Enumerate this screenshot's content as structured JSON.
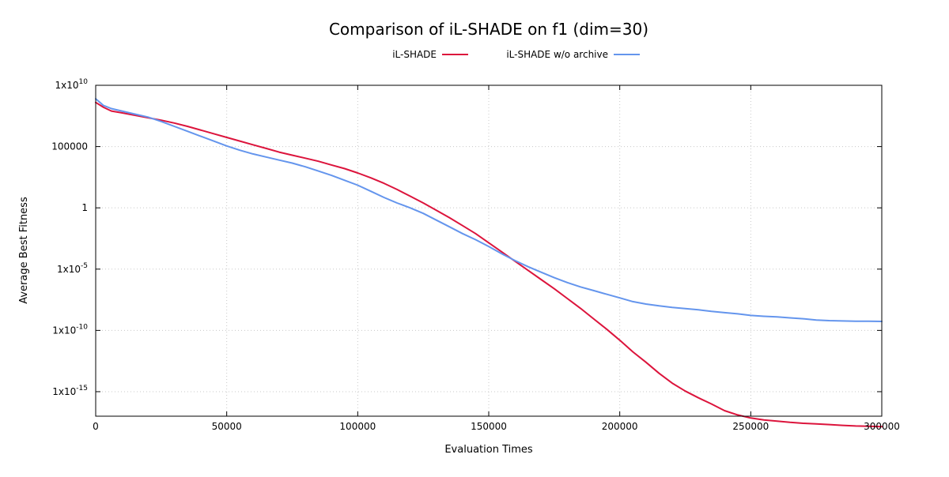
{
  "chart_data": {
    "type": "line",
    "title": "Comparison of iL-SHADE on f1 (dim=30)",
    "xlabel": "Evaluation Times",
    "ylabel": "Average Best Fitness",
    "y_scale": "log10",
    "grid": true,
    "legend_position": "top-center",
    "xlim": [
      0,
      300000
    ],
    "ylim_log10": [
      -17,
      10
    ],
    "x_ticks": [
      0,
      50000,
      100000,
      150000,
      200000,
      250000,
      300000
    ],
    "x_tick_labels": [
      "0",
      "50000",
      "100000",
      "150000",
      "200000",
      "250000",
      "300000"
    ],
    "y_ticks_log10": [
      10,
      5,
      0,
      -5,
      -10,
      -15
    ],
    "y_tick_labels": [
      {
        "base": "1x10",
        "exp": "10"
      },
      {
        "base": "100000",
        "exp": ""
      },
      {
        "base": "1",
        "exp": ""
      },
      {
        "base": "1x10",
        "exp": "-5"
      },
      {
        "base": "1x10",
        "exp": "-10"
      },
      {
        "base": "1x10",
        "exp": "-15"
      }
    ],
    "series": [
      {
        "name": "iL-SHADE",
        "color": "#dc143c",
        "x": [
          0,
          3000,
          6000,
          10000,
          15000,
          20000,
          25000,
          30000,
          35000,
          40000,
          45000,
          50000,
          55000,
          60000,
          65000,
          70000,
          75000,
          80000,
          85000,
          90000,
          95000,
          100000,
          105000,
          110000,
          115000,
          120000,
          125000,
          130000,
          135000,
          140000,
          145000,
          150000,
          155000,
          160000,
          165000,
          170000,
          175000,
          180000,
          185000,
          190000,
          195000,
          200000,
          205000,
          210000,
          215000,
          220000,
          225000,
          230000,
          235000,
          240000,
          245000,
          250000,
          255000,
          260000,
          265000,
          270000,
          275000,
          280000,
          285000,
          290000,
          295000,
          300000
        ],
        "y_log10": [
          8.6,
          8.2,
          7.9,
          7.75,
          7.55,
          7.35,
          7.15,
          6.92,
          6.65,
          6.35,
          6.05,
          5.75,
          5.45,
          5.15,
          4.85,
          4.55,
          4.3,
          4.05,
          3.8,
          3.5,
          3.2,
          2.85,
          2.45,
          2.0,
          1.5,
          0.95,
          0.4,
          -0.2,
          -0.8,
          -1.45,
          -2.1,
          -2.85,
          -3.6,
          -4.35,
          -5.1,
          -5.85,
          -6.6,
          -7.4,
          -8.2,
          -9.05,
          -9.9,
          -10.8,
          -11.75,
          -12.6,
          -13.5,
          -14.3,
          -14.95,
          -15.5,
          -16.0,
          -16.55,
          -16.9,
          -17.15,
          -17.3,
          -17.4,
          -17.5,
          -17.58,
          -17.63,
          -17.68,
          -17.75,
          -17.8,
          -17.82,
          -17.85
        ]
      },
      {
        "name": "iL-SHADE w/o archive",
        "color": "#6495ed",
        "x": [
          0,
          3000,
          6000,
          10000,
          15000,
          20000,
          25000,
          30000,
          35000,
          40000,
          45000,
          50000,
          55000,
          60000,
          65000,
          70000,
          75000,
          80000,
          85000,
          90000,
          95000,
          100000,
          105000,
          110000,
          115000,
          120000,
          125000,
          130000,
          135000,
          140000,
          145000,
          150000,
          155000,
          160000,
          165000,
          170000,
          175000,
          180000,
          185000,
          190000,
          195000,
          200000,
          205000,
          210000,
          215000,
          220000,
          225000,
          230000,
          235000,
          240000,
          245000,
          250000,
          255000,
          260000,
          265000,
          270000,
          275000,
          280000,
          285000,
          290000,
          295000,
          300000
        ],
        "y_log10": [
          8.9,
          8.35,
          8.1,
          7.9,
          7.65,
          7.4,
          7.05,
          6.65,
          6.25,
          5.85,
          5.45,
          5.05,
          4.7,
          4.4,
          4.15,
          3.9,
          3.65,
          3.35,
          3.0,
          2.65,
          2.25,
          1.85,
          1.35,
          0.85,
          0.4,
          0.0,
          -0.45,
          -1.0,
          -1.55,
          -2.1,
          -2.6,
          -3.15,
          -3.75,
          -4.3,
          -4.8,
          -5.25,
          -5.7,
          -6.1,
          -6.45,
          -6.75,
          -7.05,
          -7.35,
          -7.65,
          -7.85,
          -8.0,
          -8.12,
          -8.22,
          -8.32,
          -8.45,
          -8.55,
          -8.65,
          -8.78,
          -8.85,
          -8.9,
          -8.98,
          -9.05,
          -9.15,
          -9.2,
          -9.23,
          -9.25,
          -9.25,
          -9.27
        ]
      }
    ]
  }
}
